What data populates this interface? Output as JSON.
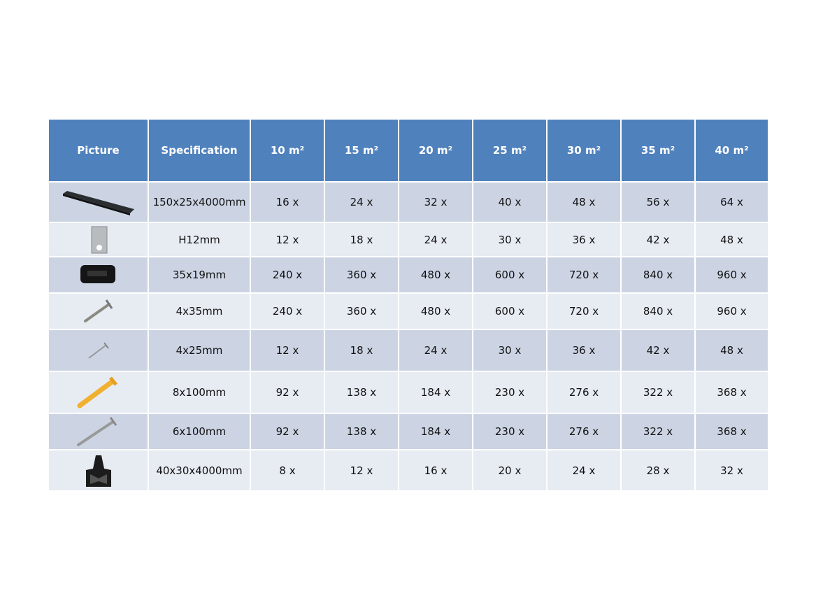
{
  "table": {
    "headers": [
      "Picture",
      "Specification",
      "10 m²",
      "15 m²",
      "20 m²",
      "25 m²",
      "30 m²",
      "35 m²",
      "40 m²"
    ],
    "rows": [
      {
        "icon": "decking-board-icon",
        "spec": "150x25x4000mm",
        "values": [
          "16 x",
          "24 x",
          "32 x",
          "40 x",
          "48 x",
          "56 x",
          "64 x"
        ]
      },
      {
        "icon": "metal-clip-icon",
        "spec": "H12mm",
        "values": [
          "12 x",
          "18 x",
          "24 x",
          "30 x",
          "36 x",
          "42 x",
          "48 x"
        ]
      },
      {
        "icon": "plastic-clip-icon",
        "spec": "35x19mm",
        "values": [
          "240 x",
          "360 x",
          "480 x",
          "600 x",
          "720 x",
          "840 x",
          "960 x"
        ]
      },
      {
        "icon": "screw-icon",
        "spec": "4x35mm",
        "values": [
          "240 x",
          "360 x",
          "480 x",
          "600 x",
          "720 x",
          "840 x",
          "960 x"
        ]
      },
      {
        "icon": "small-screw-icon",
        "spec": "4x25mm",
        "values": [
          "12 x",
          "18 x",
          "24 x",
          "30 x",
          "36 x",
          "42 x",
          "48 x"
        ]
      },
      {
        "icon": "wall-plug-icon",
        "spec": "8x100mm",
        "values": [
          "92 x",
          "138 x",
          "184 x",
          "230 x",
          "276 x",
          "322 x",
          "368 x"
        ]
      },
      {
        "icon": "long-screw-icon",
        "spec": "6x100mm",
        "values": [
          "92 x",
          "138 x",
          "184 x",
          "230 x",
          "276 x",
          "322 x",
          "368 x"
        ]
      },
      {
        "icon": "joist-icon",
        "spec": "40x30x4000mm",
        "values": [
          "8 x",
          "12 x",
          "16 x",
          "20 x",
          "24 x",
          "28 x",
          "32 x"
        ]
      }
    ]
  },
  "colors": {
    "header": "#4f81bd",
    "row_dark": "#ccd4e4",
    "row_light": "#e7ebf2"
  }
}
